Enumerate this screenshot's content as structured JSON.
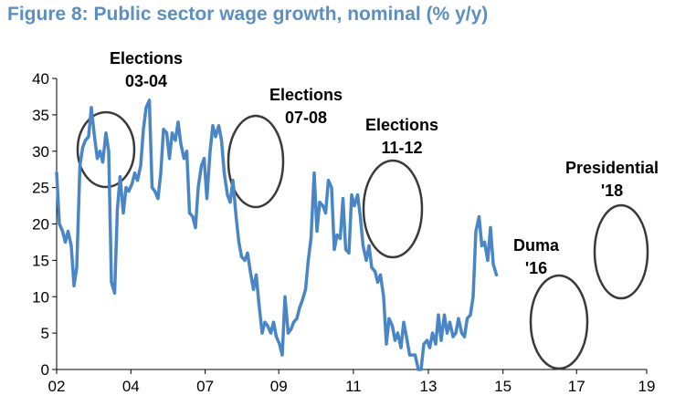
{
  "chart_data": {
    "type": "line",
    "title": "Figure 8: Public sector wage growth, nominal (% y/y)",
    "xlabel": "",
    "ylabel": "",
    "xlim": [
      2002,
      2019
    ],
    "ylim": [
      0,
      40
    ],
    "x_ticks": [
      {
        "label": "02",
        "value": 2002
      },
      {
        "label": "04",
        "value": 2004.14
      },
      {
        "label": "07",
        "value": 2006.28
      },
      {
        "label": "09",
        "value": 2008.4
      },
      {
        "label": "11",
        "value": 2010.55
      },
      {
        "label": "13",
        "value": 2012.71
      },
      {
        "label": "15",
        "value": 2014.86
      },
      {
        "label": "17",
        "value": 2016.98
      },
      {
        "label": "19",
        "value": 2019
      }
    ],
    "y_ticks": [
      0,
      5,
      10,
      15,
      20,
      25,
      30,
      35,
      40
    ],
    "grid": false,
    "legend": "none",
    "colors": {
      "line": "#4a86c5",
      "ellipse": "#3a3a3a",
      "title": "#5b8fc2"
    },
    "series": [
      {
        "name": "",
        "points": [
          [
            2002.0,
            27
          ],
          [
            2002.08,
            20
          ],
          [
            2002.17,
            19
          ],
          [
            2002.25,
            17.5
          ],
          [
            2002.33,
            19
          ],
          [
            2002.42,
            17
          ],
          [
            2002.5,
            11.5
          ],
          [
            2002.58,
            14
          ],
          [
            2002.67,
            28
          ],
          [
            2002.75,
            30.5
          ],
          [
            2002.83,
            31.5
          ],
          [
            2002.92,
            32
          ],
          [
            2003.0,
            36
          ],
          [
            2003.08,
            32.5
          ],
          [
            2003.17,
            29
          ],
          [
            2003.25,
            30
          ],
          [
            2003.33,
            28.5
          ],
          [
            2003.42,
            32.5
          ],
          [
            2003.5,
            30
          ],
          [
            2003.58,
            12
          ],
          [
            2003.67,
            10.5
          ],
          [
            2003.75,
            22
          ],
          [
            2003.83,
            26.5
          ],
          [
            2003.92,
            21.5
          ],
          [
            2004.0,
            25
          ],
          [
            2004.08,
            24.5
          ],
          [
            2004.17,
            25.5
          ],
          [
            2004.25,
            27
          ],
          [
            2004.33,
            26
          ],
          [
            2004.42,
            28
          ],
          [
            2004.5,
            33
          ],
          [
            2004.58,
            36
          ],
          [
            2004.67,
            37
          ],
          [
            2004.75,
            25
          ],
          [
            2004.83,
            24.5
          ],
          [
            2004.92,
            23.5
          ],
          [
            2005.0,
            27
          ],
          [
            2005.08,
            33
          ],
          [
            2005.17,
            32.5
          ],
          [
            2005.25,
            29
          ],
          [
            2005.33,
            32.5
          ],
          [
            2005.42,
            31.5
          ],
          [
            2005.5,
            34
          ],
          [
            2005.58,
            31
          ],
          [
            2005.67,
            29
          ],
          [
            2005.75,
            30
          ],
          [
            2005.83,
            21.5
          ],
          [
            2005.92,
            21
          ],
          [
            2006.0,
            19.5
          ],
          [
            2006.08,
            25
          ],
          [
            2006.17,
            28
          ],
          [
            2006.25,
            29
          ],
          [
            2006.33,
            23.5
          ],
          [
            2006.42,
            30
          ],
          [
            2006.5,
            33.5
          ],
          [
            2006.58,
            32
          ],
          [
            2006.67,
            33.5
          ],
          [
            2006.75,
            31.5
          ],
          [
            2006.83,
            27
          ],
          [
            2006.92,
            24
          ],
          [
            2007.0,
            23
          ],
          [
            2007.08,
            26
          ],
          [
            2007.17,
            21
          ],
          [
            2007.25,
            17.5
          ],
          [
            2007.33,
            15.5
          ],
          [
            2007.42,
            15
          ],
          [
            2007.5,
            16
          ],
          [
            2007.58,
            13.5
          ],
          [
            2007.67,
            11
          ],
          [
            2007.75,
            13
          ],
          [
            2007.83,
            9
          ],
          [
            2007.92,
            5
          ],
          [
            2008.0,
            6.5
          ],
          [
            2008.08,
            6
          ],
          [
            2008.17,
            5
          ],
          [
            2008.25,
            6.5
          ],
          [
            2008.33,
            4.5
          ],
          [
            2008.42,
            3.5
          ],
          [
            2008.5,
            2
          ],
          [
            2008.58,
            10
          ],
          [
            2008.67,
            5
          ],
          [
            2008.75,
            5.5
          ],
          [
            2008.83,
            6.5
          ],
          [
            2008.92,
            7
          ],
          [
            2009.0,
            8.5
          ],
          [
            2009.08,
            9.5
          ],
          [
            2009.17,
            11
          ],
          [
            2009.25,
            15
          ],
          [
            2009.33,
            18
          ],
          [
            2009.42,
            27
          ],
          [
            2009.5,
            19
          ],
          [
            2009.58,
            23
          ],
          [
            2009.67,
            22.5
          ],
          [
            2009.75,
            21.5
          ],
          [
            2009.83,
            26
          ],
          [
            2009.92,
            25
          ],
          [
            2010.0,
            16.5
          ],
          [
            2010.08,
            18.5
          ],
          [
            2010.17,
            18
          ],
          [
            2010.25,
            23.5
          ],
          [
            2010.33,
            16.5
          ],
          [
            2010.42,
            16
          ],
          [
            2010.5,
            24
          ],
          [
            2010.58,
            22.5
          ],
          [
            2010.67,
            24
          ],
          [
            2010.75,
            21
          ],
          [
            2010.83,
            17
          ],
          [
            2010.92,
            15
          ],
          [
            2011.0,
            17
          ],
          [
            2011.08,
            14
          ],
          [
            2011.17,
            13.5
          ],
          [
            2011.25,
            12
          ],
          [
            2011.33,
            13
          ],
          [
            2011.42,
            10
          ],
          [
            2011.5,
            3.5
          ],
          [
            2011.58,
            7
          ],
          [
            2011.67,
            6
          ],
          [
            2011.75,
            4
          ],
          [
            2011.83,
            5
          ],
          [
            2011.92,
            3
          ],
          [
            2012.0,
            6.5
          ],
          [
            2012.08,
            4.5
          ],
          [
            2012.17,
            2
          ],
          [
            2012.25,
            2
          ],
          [
            2012.33,
            2
          ],
          [
            2012.42,
            0
          ],
          [
            2012.5,
            0
          ],
          [
            2012.58,
            3.5
          ],
          [
            2012.67,
            4
          ],
          [
            2012.75,
            3
          ],
          [
            2012.83,
            5
          ],
          [
            2012.92,
            3.5
          ],
          [
            2013.0,
            7.5
          ],
          [
            2013.08,
            4
          ],
          [
            2013.17,
            7.5
          ],
          [
            2013.25,
            5
          ],
          [
            2013.33,
            6.5
          ],
          [
            2013.42,
            4.5
          ],
          [
            2013.5,
            5
          ],
          [
            2013.58,
            7
          ],
          [
            2013.67,
            5
          ],
          [
            2013.75,
            4.5
          ],
          [
            2013.83,
            7
          ],
          [
            2013.92,
            7.5
          ],
          [
            2014.0,
            10
          ],
          [
            2014.08,
            19
          ],
          [
            2014.17,
            21
          ],
          [
            2014.25,
            17
          ],
          [
            2014.33,
            17.5
          ],
          [
            2014.42,
            15
          ],
          [
            2014.5,
            19.5
          ],
          [
            2014.58,
            14.5
          ],
          [
            2014.67,
            13
          ]
        ]
      }
    ],
    "annotations": [
      {
        "lines": [
          "Elections",
          "03-04"
        ]
      },
      {
        "lines": [
          "Elections",
          "07-08"
        ]
      },
      {
        "lines": [
          "Elections",
          "11-12"
        ]
      },
      {
        "lines": [
          "Duma",
          "'16"
        ]
      },
      {
        "lines": [
          "Presidential",
          "'18"
        ]
      }
    ]
  }
}
